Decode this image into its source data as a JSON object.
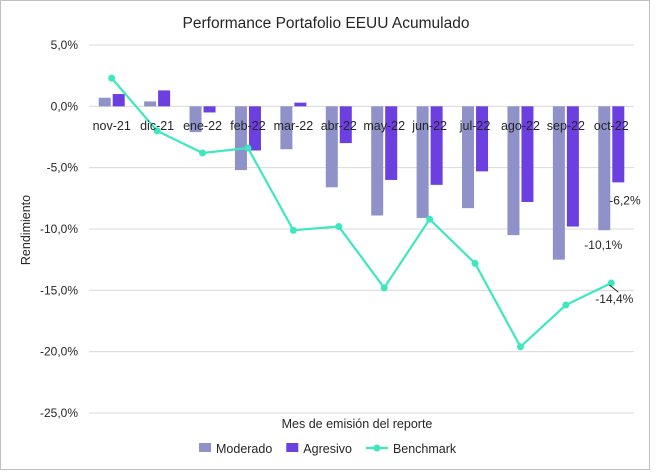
{
  "chart_data": {
    "type": "bar",
    "title": "Performance Portafolio EEUU Acumulado",
    "xlabel": "Mes de emisión del reporte",
    "ylabel": "Rendimiento",
    "categories": [
      "nov-21",
      "dic-21",
      "ene-22",
      "feb-22",
      "mar-22",
      "abr-22",
      "may-22",
      "jun-22",
      "jul-22",
      "ago-22",
      "sep-22",
      "oct-22"
    ],
    "ylim": [
      -25,
      5
    ],
    "yticks": [
      5,
      0,
      -5,
      -10,
      -15,
      -20,
      -25
    ],
    "ytick_labels": [
      "5,0%",
      "0,0%",
      "-5,0%",
      "-10,0%",
      "-15,0%",
      "-20,0%",
      "-25,0%"
    ],
    "grid": true,
    "legend_position": "bottom",
    "series": [
      {
        "name": "Moderado",
        "kind": "bar",
        "color": "#8E92C8",
        "values": [
          0.7,
          0.4,
          -2.1,
          -5.2,
          -3.5,
          -6.6,
          -8.9,
          -9.1,
          -8.3,
          -10.5,
          -12.5,
          -10.1
        ]
      },
      {
        "name": "Agresivo",
        "kind": "bar",
        "color": "#6B3FE0",
        "values": [
          1.0,
          1.3,
          -0.5,
          -3.6,
          0.3,
          -3.0,
          -6.0,
          -6.4,
          -5.3,
          -7.8,
          -9.8,
          -6.2
        ]
      },
      {
        "name": "Benchmark",
        "kind": "line",
        "color": "#3DE8C0",
        "values": [
          2.3,
          -2.0,
          -3.8,
          -3.4,
          -10.1,
          -9.8,
          -14.8,
          -9.2,
          -12.8,
          -19.6,
          -16.2,
          -14.4
        ]
      }
    ],
    "annotations": [
      {
        "text": "-6,2%",
        "series": "Agresivo",
        "category": "oct-22"
      },
      {
        "text": "-10,1%",
        "series": "Moderado",
        "category": "oct-22"
      },
      {
        "text": "-14,4%",
        "series": "Benchmark",
        "category": "oct-22"
      }
    ]
  }
}
